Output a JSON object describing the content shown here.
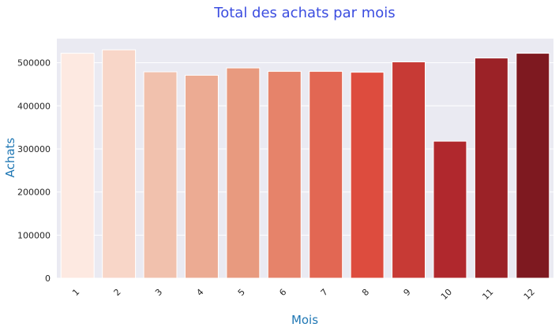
{
  "colors": {
    "title": "#3b4de0",
    "axis_label": "#1f77b4",
    "plot_bg": "#eaeaf2",
    "grid": "#ffffff",
    "bar_palette": [
      "#fde9e1",
      "#f8d6c8",
      "#f1c1ad",
      "#ecab93",
      "#e89a7f",
      "#e6836a",
      "#e26753",
      "#dd4c3e",
      "#c73a35",
      "#b0282d",
      "#9b2227",
      "#7e1920"
    ]
  },
  "chart_data": {
    "type": "bar",
    "title": "Total des achats par mois",
    "xlabel": "Mois",
    "ylabel": "Achats",
    "categories": [
      "1",
      "2",
      "3",
      "4",
      "5",
      "6",
      "7",
      "8",
      "9",
      "10",
      "11",
      "12"
    ],
    "values": [
      522000,
      530000,
      479000,
      471000,
      488000,
      480000,
      480000,
      478000,
      502000,
      318000,
      511000,
      522000
    ],
    "ylim": [
      0,
      556000
    ],
    "yticks": [
      0,
      100000,
      200000,
      300000,
      400000,
      500000
    ],
    "ytick_labels": [
      "0",
      "100000",
      "200000",
      "300000",
      "400000",
      "500000"
    ],
    "grid": true,
    "legend": "none"
  }
}
